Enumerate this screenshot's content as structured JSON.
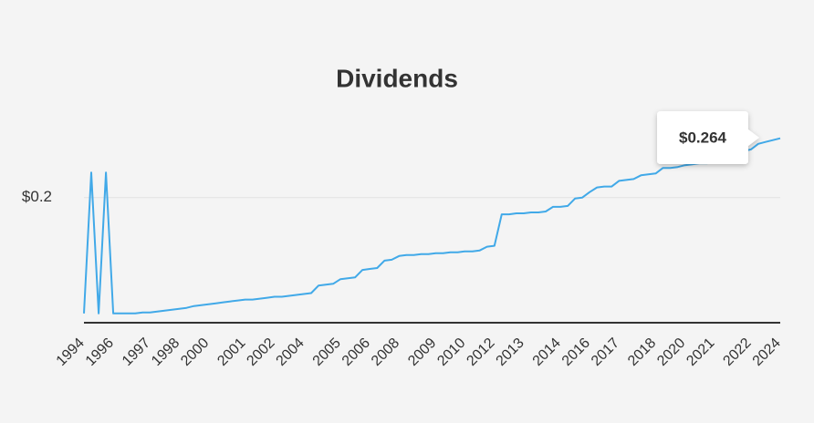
{
  "chart_data": {
    "type": "line",
    "title": "Dividends",
    "categories": [
      "1994",
      null,
      null,
      null,
      "1996",
      null,
      null,
      null,
      null,
      "1997",
      null,
      null,
      null,
      "1998",
      null,
      null,
      null,
      "2000",
      null,
      null,
      null,
      null,
      "2001",
      null,
      null,
      null,
      "2002",
      null,
      null,
      null,
      "2004",
      null,
      null,
      null,
      null,
      "2005",
      null,
      null,
      null,
      "2006",
      null,
      null,
      null,
      "2008",
      null,
      null,
      null,
      null,
      "2009",
      null,
      null,
      null,
      "2010",
      null,
      null,
      null,
      "2012",
      null,
      null,
      null,
      "2013",
      null,
      null,
      null,
      null,
      "2014",
      null,
      null,
      null,
      "2016",
      null,
      null,
      null,
      "2017",
      null,
      null,
      null,
      null,
      "2018",
      null,
      null,
      null,
      "2020",
      null,
      null,
      null,
      "2021",
      null,
      null,
      null,
      null,
      "2022",
      null,
      null,
      null,
      "2024"
    ],
    "values": [
      0.075,
      0.227,
      0.075,
      0.227,
      0.075,
      0.075,
      0.075,
      0.075,
      0.076,
      0.076,
      0.077,
      0.078,
      0.079,
      0.08,
      0.081,
      0.083,
      0.084,
      0.085,
      0.086,
      0.087,
      0.088,
      0.089,
      0.09,
      0.09,
      0.091,
      0.092,
      0.093,
      0.093,
      0.094,
      0.095,
      0.096,
      0.097,
      0.105,
      0.106,
      0.107,
      0.112,
      0.113,
      0.114,
      0.122,
      0.123,
      0.124,
      0.132,
      0.133,
      0.137,
      0.138,
      0.138,
      0.139,
      0.139,
      0.14,
      0.14,
      0.141,
      0.141,
      0.142,
      0.142,
      0.143,
      0.147,
      0.148,
      0.182,
      0.182,
      0.183,
      0.183,
      0.184,
      0.184,
      0.185,
      0.19,
      0.19,
      0.191,
      0.199,
      0.2,
      0.206,
      0.211,
      0.212,
      0.212,
      0.218,
      0.219,
      0.22,
      0.224,
      0.225,
      0.226,
      0.232,
      0.232,
      0.233,
      0.235,
      0.236,
      0.237,
      0.237,
      0.238,
      0.24,
      0.243,
      0.248,
      0.25,
      0.252,
      0.258,
      0.26,
      0.262,
      0.264
    ],
    "color": "#41a9e8",
    "ylim": [
      0.065,
      0.305
    ],
    "yticks": [
      {
        "value": 0.2,
        "label": "$0.2"
      }
    ],
    "grid": true,
    "tooltip": "$0.264"
  }
}
